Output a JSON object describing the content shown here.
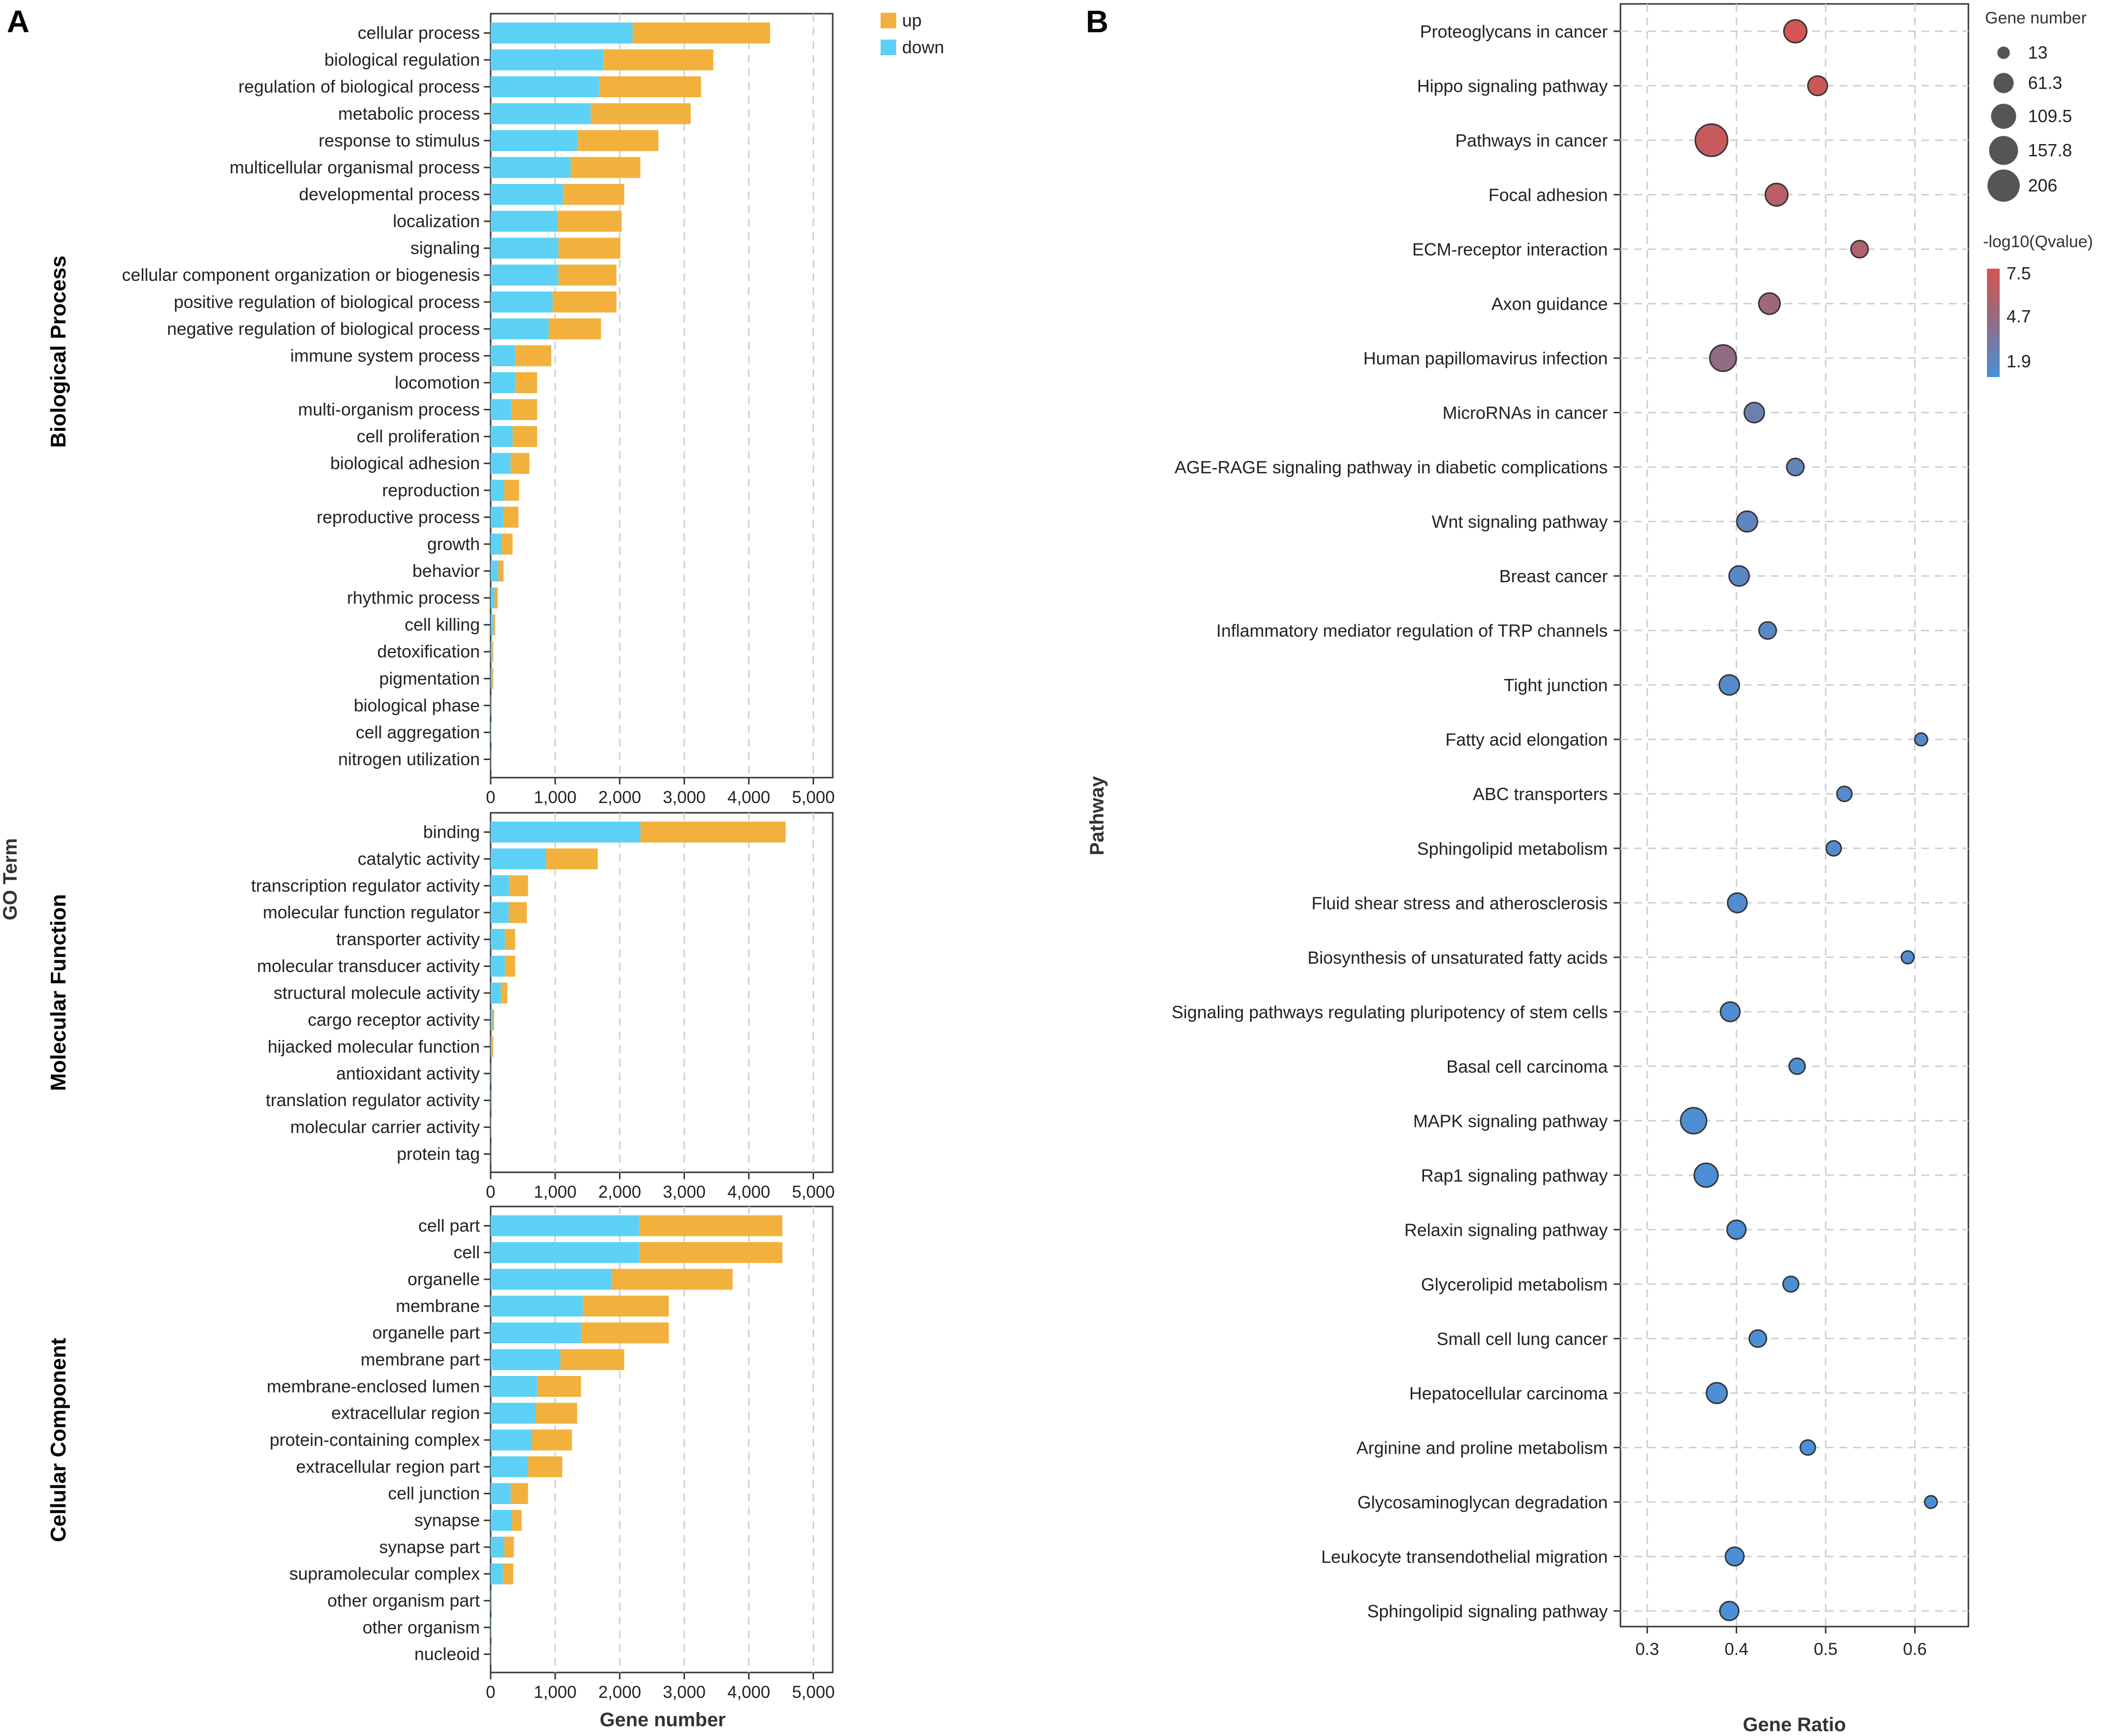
{
  "colors": {
    "up": "#F2B13C",
    "down": "#5DD1F5",
    "high_q": "#D9534F",
    "mid_q": "#8D6E86",
    "low_q": "#4A90D9",
    "grid": "#cfcfcf",
    "axis": "#333333"
  },
  "panel_a": {
    "letter": "A"
  },
  "panel_b": {
    "letter": "B"
  },
  "chart_data": [
    {
      "type": "bar",
      "stacked": true,
      "orientation": "horizontal",
      "y_axis_title": "GO Term",
      "xlabel": "Gene number",
      "xlim": [
        0,
        5300
      ],
      "xticks": [
        0,
        1000,
        2000,
        3000,
        4000,
        5000
      ],
      "xtick_labels": [
        "0",
        "1,000",
        "2,000",
        "3,000",
        "4,000",
        "5,000"
      ],
      "legend": [
        {
          "name": "up",
          "color": "#F2B13C"
        },
        {
          "name": "down",
          "color": "#5DD1F5"
        }
      ],
      "legend_position": "top-right",
      "groups": [
        {
          "title": "Biological Process",
          "categories": [
            "cellular process",
            "biological regulation",
            "regulation of biological process",
            "metabolic process",
            "response to stimulus",
            "multicellular organismal process",
            "developmental process",
            "localization",
            "signaling",
            "cellular component organization or biogenesis",
            "positive regulation of biological process",
            "negative regulation of biological process",
            "immune system process",
            "locomotion",
            "multi-organism process",
            "cell proliferation",
            "biological adhesion",
            "reproduction",
            "reproductive process",
            "growth",
            "behavior",
            "rhythmic process",
            "cell killing",
            "detoxification",
            "pigmentation",
            "biological phase",
            "cell aggregation",
            "nitrogen utilization"
          ],
          "series": [
            {
              "name": "down",
              "values": [
                2200,
                1750,
                1680,
                1550,
                1350,
                1240,
                1120,
                1040,
                1050,
                1050,
                960,
                900,
                380,
                380,
                320,
                340,
                310,
                210,
                200,
                170,
                120,
                60,
                40,
                25,
                25,
                10,
                8,
                5
              ]
            },
            {
              "name": "up",
              "values": [
                2130,
                1700,
                1580,
                1550,
                1250,
                1080,
                950,
                990,
                960,
                900,
                990,
                810,
                560,
                340,
                400,
                380,
                290,
                230,
                230,
                170,
                80,
                50,
                30,
                15,
                15,
                8,
                5,
                3
              ]
            }
          ]
        },
        {
          "title": "Molecular Function",
          "categories": [
            "binding",
            "catalytic activity",
            "transcription regulator activity",
            "molecular function regulator",
            "transporter activity",
            "molecular transducer activity",
            "structural molecule activity",
            "cargo receptor activity",
            "hijacked molecular function",
            "antioxidant activity",
            "translation regulator activity",
            "molecular carrier activity",
            "protein tag"
          ],
          "series": [
            {
              "name": "down",
              "values": [
                2320,
                860,
                290,
                280,
                220,
                220,
                160,
                30,
                20,
                10,
                10,
                5,
                3
              ]
            },
            {
              "name": "up",
              "values": [
                2250,
                800,
                290,
                280,
                160,
                160,
                100,
                25,
                20,
                10,
                10,
                5,
                2
              ]
            }
          ]
        },
        {
          "title": "Cellular Component",
          "categories": [
            "cell part",
            "cell",
            "organelle",
            "membrane",
            "organelle part",
            "membrane part",
            "membrane-enclosed lumen",
            "extracellular region",
            "protein-containing complex",
            "extracellular region part",
            "cell junction",
            "synapse",
            "synapse part",
            "supramolecular complex",
            "other organism part",
            "other organism",
            "nucleoid"
          ],
          "series": [
            {
              "name": "down",
              "values": [
                2300,
                2300,
                1880,
                1430,
                1400,
                1080,
                720,
                700,
                640,
                580,
                310,
                330,
                210,
                190,
                10,
                8,
                5
              ]
            },
            {
              "name": "up",
              "values": [
                2220,
                2220,
                1870,
                1330,
                1360,
                990,
                680,
                640,
                620,
                530,
                270,
                150,
                150,
                160,
                8,
                6,
                3
              ]
            }
          ]
        }
      ]
    },
    {
      "type": "scatter",
      "subtype": "bubble",
      "xlabel": "Gene Ratio",
      "ylabel": "Pathway",
      "xlim": [
        0.27,
        0.66
      ],
      "xticks": [
        0.3,
        0.4,
        0.5,
        0.6
      ],
      "xtick_labels": [
        "0.3",
        "0.4",
        "0.5",
        "0.6"
      ],
      "size_legend": {
        "title": "Gene number",
        "values": [
          13,
          61.3,
          109.5,
          157.8,
          206
        ],
        "labels": [
          "13",
          "61.3",
          "109.5",
          "157.8",
          "206"
        ]
      },
      "color_legend": {
        "title": "-log10(Qvalue)",
        "min": 1.9,
        "mid": 4.7,
        "max": 7.5,
        "labels": [
          "7.5",
          "4.7",
          "1.9"
        ]
      },
      "points": [
        {
          "pathway": "Proteoglycans in cancer",
          "ratio": 0.466,
          "genes": 85,
          "q": 7.3
        },
        {
          "pathway": "Hippo signaling pathway",
          "ratio": 0.491,
          "genes": 55,
          "q": 7.0
        },
        {
          "pathway": "Pathways in cancer",
          "ratio": 0.372,
          "genes": 206,
          "q": 6.8
        },
        {
          "pathway": "Focal adhesion",
          "ratio": 0.445,
          "genes": 82,
          "q": 6.3
        },
        {
          "pathway": "ECM-receptor interaction",
          "ratio": 0.538,
          "genes": 38,
          "q": 5.9
        },
        {
          "pathway": "Axon guidance",
          "ratio": 0.437,
          "genes": 70,
          "q": 5.2
        },
        {
          "pathway": "Human papillomavirus infection",
          "ratio": 0.385,
          "genes": 125,
          "q": 4.8
        },
        {
          "pathway": "MicroRNAs in cancer",
          "ratio": 0.42,
          "genes": 60,
          "q": 3.3
        },
        {
          "pathway": "AGE-RAGE signaling pathway in diabetic complications",
          "ratio": 0.466,
          "genes": 38,
          "q": 3.0
        },
        {
          "pathway": "Wnt signaling pathway",
          "ratio": 0.412,
          "genes": 65,
          "q": 2.8
        },
        {
          "pathway": "Breast cancer",
          "ratio": 0.403,
          "genes": 60,
          "q": 2.6
        },
        {
          "pathway": "Inflammatory mediator regulation of TRP channels",
          "ratio": 0.435,
          "genes": 38,
          "q": 2.5
        },
        {
          "pathway": "Tight junction",
          "ratio": 0.392,
          "genes": 60,
          "q": 2.4
        },
        {
          "pathway": "Fatty acid elongation",
          "ratio": 0.607,
          "genes": 14,
          "q": 2.4
        },
        {
          "pathway": "ABC transporters",
          "ratio": 0.521,
          "genes": 25,
          "q": 2.3
        },
        {
          "pathway": "Sphingolipid metabolism",
          "ratio": 0.509,
          "genes": 25,
          "q": 2.3
        },
        {
          "pathway": "Fluid shear stress and atherosclerosis",
          "ratio": 0.401,
          "genes": 55,
          "q": 2.2
        },
        {
          "pathway": "Biosynthesis of unsaturated fatty acids",
          "ratio": 0.592,
          "genes": 14,
          "q": 2.2
        },
        {
          "pathway": "Signaling pathways regulating pluripotency of stem cells",
          "ratio": 0.393,
          "genes": 55,
          "q": 2.2
        },
        {
          "pathway": "Basal cell carcinoma",
          "ratio": 0.468,
          "genes": 30,
          "q": 2.1
        },
        {
          "pathway": "MAPK signaling pathway",
          "ratio": 0.352,
          "genes": 120,
          "q": 2.1
        },
        {
          "pathway": "Rap1 signaling pathway",
          "ratio": 0.366,
          "genes": 95,
          "q": 2.0
        },
        {
          "pathway": "Relaxin signaling pathway",
          "ratio": 0.4,
          "genes": 50,
          "q": 2.0
        },
        {
          "pathway": "Glycerolipid metabolism",
          "ratio": 0.461,
          "genes": 28,
          "q": 2.0
        },
        {
          "pathway": "Small cell lung cancer",
          "ratio": 0.424,
          "genes": 38,
          "q": 2.0
        },
        {
          "pathway": "Hepatocellular carcinoma",
          "ratio": 0.378,
          "genes": 65,
          "q": 2.0
        },
        {
          "pathway": "Arginine and proline metabolism",
          "ratio": 0.48,
          "genes": 25,
          "q": 1.9
        },
        {
          "pathway": "Glycosaminoglycan degradation",
          "ratio": 0.618,
          "genes": 13,
          "q": 1.9
        },
        {
          "pathway": "Leukocyte transendothelial migration",
          "ratio": 0.398,
          "genes": 48,
          "q": 1.9
        },
        {
          "pathway": "Sphingolipid signaling pathway",
          "ratio": 0.392,
          "genes": 50,
          "q": 1.9
        }
      ]
    }
  ]
}
